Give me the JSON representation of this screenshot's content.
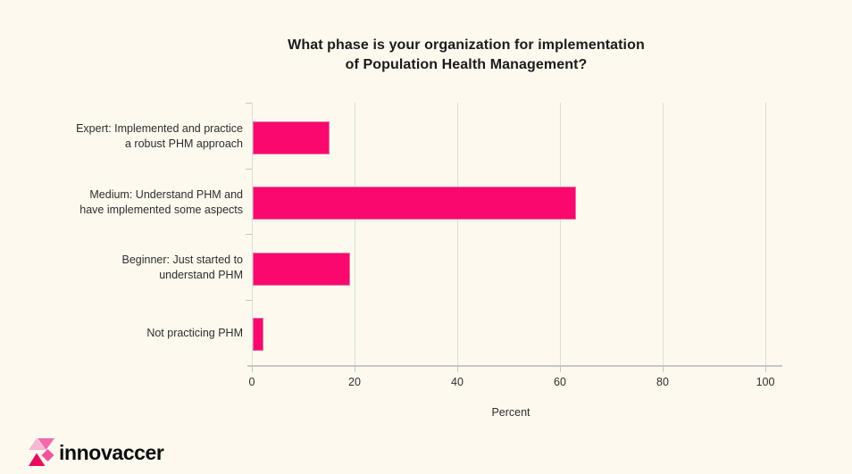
{
  "page": {
    "background": "#FDF9EF"
  },
  "chart_data": {
    "type": "bar",
    "orientation": "horizontal",
    "title": "What phase is your organization for implementation of Population Health Management?",
    "title_lines": [
      "What phase is your organization for implementation",
      "of Population Health Management?"
    ],
    "categories": [
      "Expert: Implemented and practice a robust PHM approach",
      "Medium: Understand PHM and have implemented some aspects",
      "Beginner: Just started to understand PHM",
      "Not practicing PHM"
    ],
    "category_label_lines": [
      [
        "Expert: Implemented and  practice",
        "a robust PHM approach"
      ],
      [
        "Medium: Understand PHM and",
        "have implemented some aspects"
      ],
      [
        "Beginner: Just started to",
        "understand PHM"
      ],
      [
        "Not practicing PHM"
      ]
    ],
    "values": [
      15,
      63,
      19,
      2
    ],
    "xlabel": "Percent",
    "xticks": [
      0,
      20,
      40,
      60,
      80,
      100
    ],
    "xlim": [
      0,
      103
    ],
    "grid": true,
    "legend": "none",
    "bar_color": "#FA086D",
    "gridline_color": "#DCDCDC",
    "axis_color": "#C6C6C6",
    "background_color": "#FDF9EF"
  },
  "logo": {
    "text": "innovaccer",
    "mark_colors": {
      "light_pink": "#F8B7D3",
      "mid_pink": "#F16BAC",
      "deep_pink": "#F2539B",
      "dark_magenta": "#E70B60"
    }
  }
}
